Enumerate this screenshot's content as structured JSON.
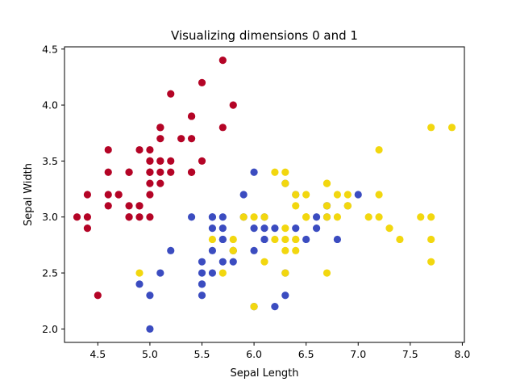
{
  "chart_data": {
    "type": "scatter",
    "title": "Visualizing dimensions 0 and 1",
    "xlabel": "Sepal Length",
    "ylabel": "Sepal Width",
    "xlim": [
      4.18,
      8.02
    ],
    "ylim": [
      1.88,
      4.52
    ],
    "xticks": [
      "4.5",
      "5.0",
      "5.5",
      "6.0",
      "6.5",
      "7.0",
      "7.5",
      "8.0"
    ],
    "yticks": [
      "2.0",
      "2.5",
      "3.0",
      "3.5",
      "4.0",
      "4.5"
    ],
    "grid": false,
    "legend": "none",
    "series": [
      {
        "color": "#b40426",
        "points": [
          [
            5.1,
            3.5
          ],
          [
            4.9,
            3.0
          ],
          [
            4.7,
            3.2
          ],
          [
            4.6,
            3.1
          ],
          [
            5.0,
            3.6
          ],
          [
            5.4,
            3.9
          ],
          [
            4.6,
            3.4
          ],
          [
            5.0,
            3.4
          ],
          [
            4.4,
            2.9
          ],
          [
            4.9,
            3.1
          ],
          [
            5.4,
            3.7
          ],
          [
            4.8,
            3.4
          ],
          [
            4.8,
            3.0
          ],
          [
            4.3,
            3.0
          ],
          [
            5.8,
            4.0
          ],
          [
            5.7,
            4.4
          ],
          [
            5.4,
            3.9
          ],
          [
            5.1,
            3.5
          ],
          [
            5.7,
            3.8
          ],
          [
            5.1,
            3.8
          ],
          [
            5.4,
            3.4
          ],
          [
            5.1,
            3.7
          ],
          [
            4.6,
            3.6
          ],
          [
            5.1,
            3.3
          ],
          [
            4.8,
            3.4
          ],
          [
            5.0,
            3.0
          ],
          [
            5.0,
            3.4
          ],
          [
            5.2,
            3.5
          ],
          [
            5.2,
            3.4
          ],
          [
            4.7,
            3.2
          ],
          [
            4.8,
            3.1
          ],
          [
            5.4,
            3.4
          ],
          [
            5.2,
            4.1
          ],
          [
            5.5,
            4.2
          ],
          [
            4.9,
            3.1
          ],
          [
            5.0,
            3.2
          ],
          [
            5.5,
            3.5
          ],
          [
            4.9,
            3.6
          ],
          [
            4.4,
            3.0
          ],
          [
            5.1,
            3.4
          ],
          [
            5.0,
            3.5
          ],
          [
            4.5,
            2.3
          ],
          [
            4.4,
            3.2
          ],
          [
            5.0,
            3.5
          ],
          [
            5.1,
            3.8
          ],
          [
            4.8,
            3.0
          ],
          [
            5.1,
            3.8
          ],
          [
            4.6,
            3.2
          ],
          [
            5.3,
            3.7
          ],
          [
            5.0,
            3.3
          ]
        ]
      },
      {
        "color": "#3b4cc0",
        "points": [
          [
            7.0,
            3.2
          ],
          [
            6.4,
            3.2
          ],
          [
            6.9,
            3.1
          ],
          [
            5.5,
            2.3
          ],
          [
            6.5,
            2.8
          ],
          [
            5.7,
            2.8
          ],
          [
            6.3,
            3.3
          ],
          [
            4.9,
            2.4
          ],
          [
            6.6,
            2.9
          ],
          [
            5.2,
            2.7
          ],
          [
            5.0,
            2.0
          ],
          [
            5.9,
            3.0
          ],
          [
            6.0,
            2.2
          ],
          [
            6.1,
            2.9
          ],
          [
            5.6,
            2.9
          ],
          [
            6.7,
            3.1
          ],
          [
            5.6,
            3.0
          ],
          [
            5.8,
            2.7
          ],
          [
            6.2,
            2.2
          ],
          [
            5.6,
            2.5
          ],
          [
            5.9,
            3.2
          ],
          [
            6.1,
            2.8
          ],
          [
            6.3,
            2.5
          ],
          [
            6.1,
            2.8
          ],
          [
            6.4,
            2.9
          ],
          [
            6.6,
            3.0
          ],
          [
            6.8,
            2.8
          ],
          [
            6.7,
            3.0
          ],
          [
            6.0,
            2.9
          ],
          [
            5.7,
            2.6
          ],
          [
            5.5,
            2.4
          ],
          [
            5.5,
            2.4
          ],
          [
            5.8,
            2.7
          ],
          [
            6.0,
            2.7
          ],
          [
            5.4,
            3.0
          ],
          [
            6.0,
            3.4
          ],
          [
            6.7,
            3.1
          ],
          [
            6.3,
            2.3
          ],
          [
            5.6,
            3.0
          ],
          [
            5.5,
            2.5
          ],
          [
            5.5,
            2.6
          ],
          [
            6.1,
            3.0
          ],
          [
            5.8,
            2.6
          ],
          [
            5.0,
            2.3
          ],
          [
            5.6,
            2.7
          ],
          [
            5.7,
            3.0
          ],
          [
            5.7,
            2.9
          ],
          [
            6.2,
            2.9
          ],
          [
            5.1,
            2.5
          ],
          [
            5.7,
            2.8
          ]
        ]
      },
      {
        "color": "#f2d70f",
        "points": [
          [
            6.3,
            3.3
          ],
          [
            5.8,
            2.7
          ],
          [
            7.1,
            3.0
          ],
          [
            6.3,
            2.9
          ],
          [
            6.5,
            3.0
          ],
          [
            7.6,
            3.0
          ],
          [
            4.9,
            2.5
          ],
          [
            7.3,
            2.9
          ],
          [
            6.7,
            2.5
          ],
          [
            7.2,
            3.6
          ],
          [
            6.5,
            3.2
          ],
          [
            6.4,
            2.7
          ],
          [
            6.8,
            3.0
          ],
          [
            5.7,
            2.5
          ],
          [
            5.8,
            2.8
          ],
          [
            6.4,
            3.2
          ],
          [
            6.5,
            3.0
          ],
          [
            7.7,
            3.8
          ],
          [
            7.7,
            2.6
          ],
          [
            6.0,
            2.2
          ],
          [
            6.9,
            3.2
          ],
          [
            5.6,
            2.8
          ],
          [
            7.7,
            2.8
          ],
          [
            6.3,
            2.7
          ],
          [
            6.7,
            3.3
          ],
          [
            7.2,
            3.2
          ],
          [
            6.2,
            2.8
          ],
          [
            6.1,
            3.0
          ],
          [
            6.4,
            2.8
          ],
          [
            7.2,
            3.0
          ],
          [
            7.4,
            2.8
          ],
          [
            7.9,
            3.8
          ],
          [
            6.4,
            2.8
          ],
          [
            6.3,
            2.8
          ],
          [
            6.1,
            2.6
          ],
          [
            7.7,
            3.0
          ],
          [
            6.3,
            3.4
          ],
          [
            6.4,
            3.1
          ],
          [
            6.0,
            3.0
          ],
          [
            6.9,
            3.1
          ],
          [
            6.7,
            3.1
          ],
          [
            6.9,
            3.1
          ],
          [
            5.8,
            2.7
          ],
          [
            6.8,
            3.2
          ],
          [
            6.7,
            3.3
          ],
          [
            6.7,
            3.0
          ],
          [
            6.3,
            2.5
          ],
          [
            6.5,
            3.0
          ],
          [
            6.2,
            3.4
          ],
          [
            5.9,
            3.0
          ]
        ]
      }
    ]
  }
}
